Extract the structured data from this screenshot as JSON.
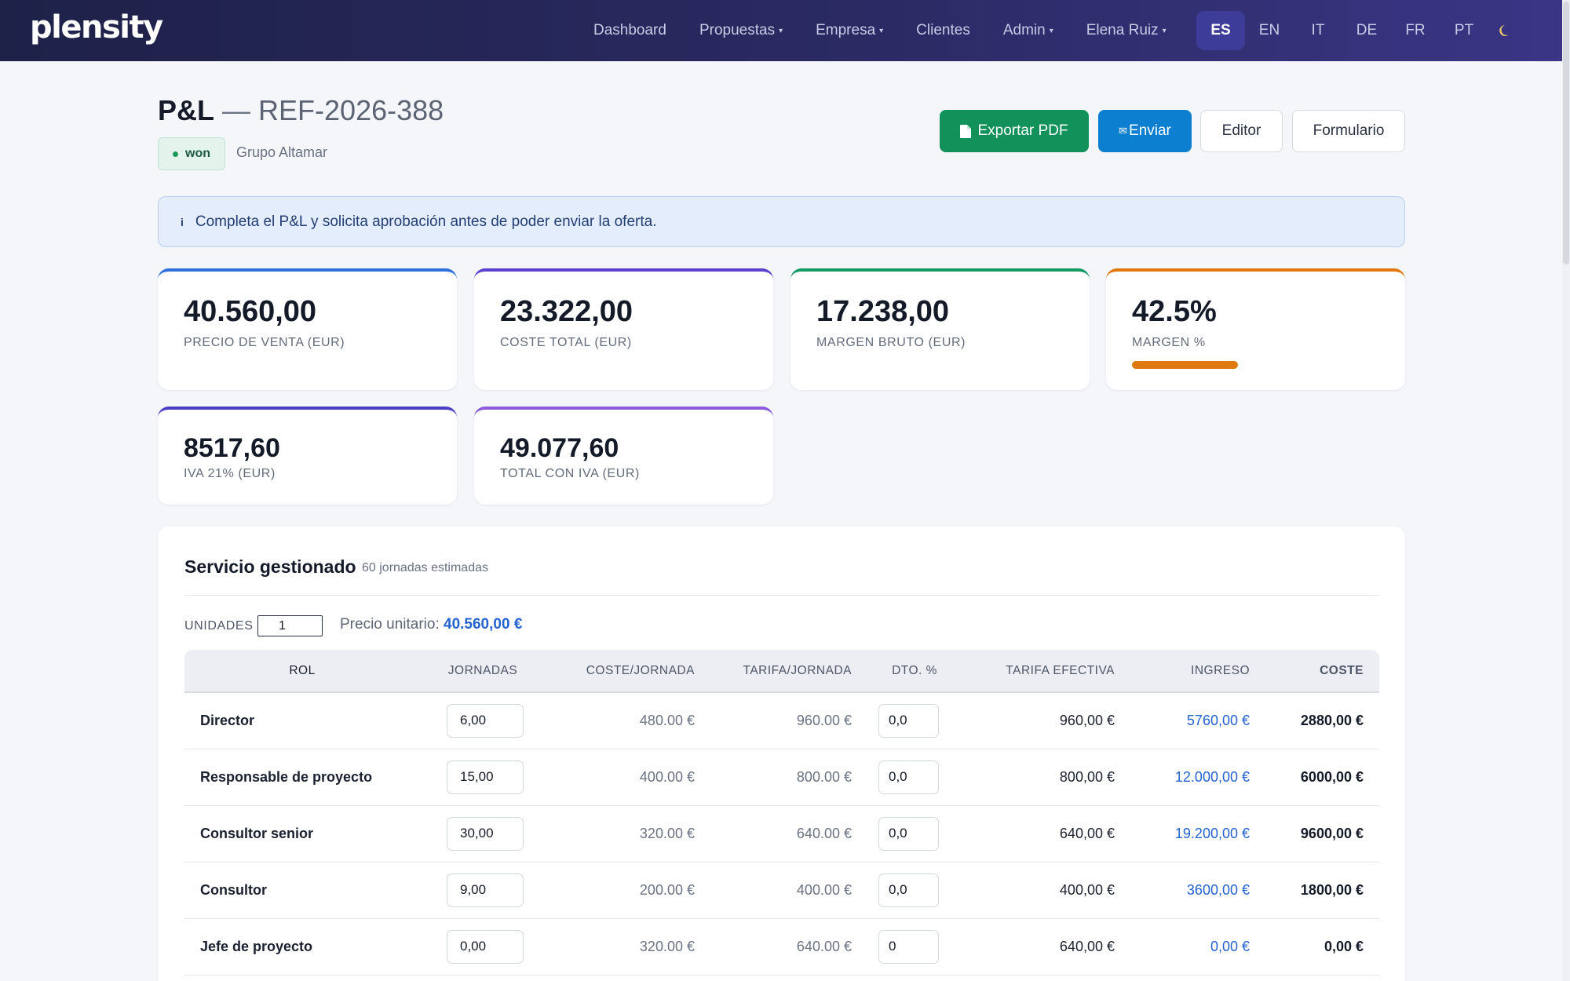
{
  "app": {
    "logo": "plensity"
  },
  "nav": {
    "items": [
      {
        "label": "Dashboard",
        "caret": false
      },
      {
        "label": "Propuestas",
        "caret": true
      },
      {
        "label": "Empresa",
        "caret": true
      },
      {
        "label": "Clientes",
        "caret": false
      },
      {
        "label": "Admin",
        "caret": true
      },
      {
        "label": "Elena Ruiz",
        "caret": true
      }
    ],
    "caret_glyph": "▾",
    "languages": [
      "ES",
      "EN",
      "IT",
      "DE",
      "FR",
      "PT"
    ],
    "active_language": "ES",
    "theme_icon": "moon-icon"
  },
  "header": {
    "title": "P&L",
    "separator": "—",
    "reference": "REF-2026-388",
    "status": "won",
    "client": "Grupo Altamar"
  },
  "actions": {
    "export_pdf": "Exportar PDF",
    "send": "Enviar",
    "editor": "Editor",
    "form": "Formulario"
  },
  "alert": {
    "text": "Completa el P&L y solicita aprobación antes de poder enviar la oferta."
  },
  "kpis": {
    "sale_price": {
      "value": "40.560,00",
      "label": "PRECIO DE VENTA (EUR)"
    },
    "total_cost": {
      "value": "23.322,00",
      "label": "COSTE TOTAL (EUR)"
    },
    "gross_margin": {
      "value": "17.238,00",
      "label": "MARGEN BRUTO (EUR)"
    },
    "margin_pct": {
      "value": "42.5%",
      "label": "MARGEN %",
      "progress_percent": 42.5
    },
    "vat": {
      "value": "8517,60",
      "label": "IVA 21% (EUR)"
    },
    "total_with_vat": {
      "value": "49.077,60",
      "label": "TOTAL CON IVA (EUR)"
    }
  },
  "section": {
    "title": "Servicio gestionado",
    "subtitle": "60 jornadas estimadas",
    "units_label": "UNIDADES",
    "units_value": "1",
    "unit_price_label": "Precio unitario:",
    "unit_price_value": "40.560,00 €"
  },
  "table": {
    "columns": [
      "ROL",
      "JORNADAS",
      "COSTE/JORNADA",
      "TARIFA/JORNADA",
      "DTO. %",
      "TARIFA EFECTIVA",
      "INGRESO",
      "COSTE"
    ],
    "rows": [
      {
        "role": "Director",
        "days": "6,00",
        "cost_day": "480.00 €",
        "rate_day": "960.00 €",
        "discount": "0,0",
        "effective_rate": "960,00 €",
        "revenue": "5760,00 €",
        "cost": "2880,00 €"
      },
      {
        "role": "Responsable de proyecto",
        "days": "15,00",
        "cost_day": "400.00 €",
        "rate_day": "800.00 €",
        "discount": "0,0",
        "effective_rate": "800,00 €",
        "revenue": "12.000,00 €",
        "cost": "6000,00 €"
      },
      {
        "role": "Consultor senior",
        "days": "30,00",
        "cost_day": "320.00 €",
        "rate_day": "640.00 €",
        "discount": "0,0",
        "effective_rate": "640,00 €",
        "revenue": "19.200,00 €",
        "cost": "9600,00 €"
      },
      {
        "role": "Consultor",
        "days": "9,00",
        "cost_day": "200.00 €",
        "rate_day": "400.00 €",
        "discount": "0,0",
        "effective_rate": "400,00 €",
        "revenue": "3600,00 €",
        "cost": "1800,00 €"
      },
      {
        "role": "Jefe de proyecto",
        "days": "0,00",
        "cost_day": "320.00 €",
        "rate_day": "640.00 €",
        "discount": "0",
        "effective_rate": "640,00 €",
        "revenue": "0,00 €",
        "cost": "0,00 €"
      }
    ]
  },
  "colors": {
    "primary_green": "#12925a",
    "primary_blue": "#0d7fd1",
    "accent_blue": "#2463d0",
    "margin_orange": "#df7a10"
  }
}
